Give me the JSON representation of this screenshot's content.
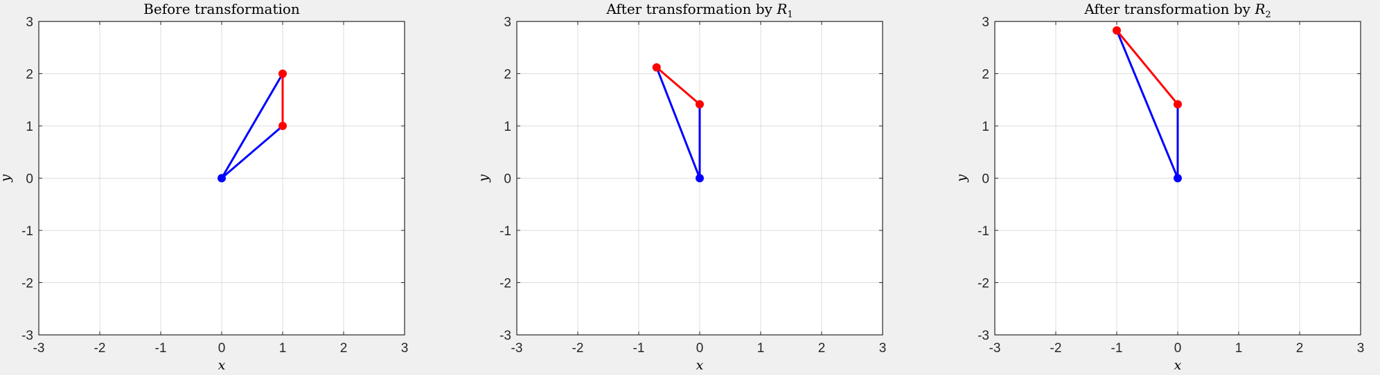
{
  "chart_data": [
    {
      "type": "line",
      "title": "Before transformation",
      "xlabel": "x",
      "ylabel": "y",
      "xlim": [
        -3,
        3
      ],
      "ylim": [
        -3,
        3
      ],
      "xticks": [
        "-3",
        "-2",
        "-1",
        "0",
        "1",
        "2",
        "3"
      ],
      "yticks": [
        "-3",
        "-2",
        "-1",
        "0",
        "1",
        "2",
        "3"
      ],
      "grid": true,
      "segments": [
        {
          "color": "#0000ff",
          "x": [
            0,
            1
          ],
          "y": [
            0,
            1
          ]
        },
        {
          "color": "#0000ff",
          "x": [
            0,
            1
          ],
          "y": [
            0,
            2
          ]
        },
        {
          "color": "#ff0000",
          "x": [
            1,
            1
          ],
          "y": [
            1,
            2
          ]
        }
      ],
      "points": [
        {
          "color": "#0000ff",
          "x": 0,
          "y": 0
        },
        {
          "color": "#ff0000",
          "x": 1,
          "y": 1
        },
        {
          "color": "#ff0000",
          "x": 1,
          "y": 2
        }
      ]
    },
    {
      "type": "line",
      "title": "After transformation by R",
      "title_subscript": "1",
      "xlabel": "x",
      "ylabel": "y",
      "xlim": [
        -3,
        3
      ],
      "ylim": [
        -3,
        3
      ],
      "xticks": [
        "-3",
        "-2",
        "-1",
        "0",
        "1",
        "2",
        "3"
      ],
      "yticks": [
        "-3",
        "-2",
        "-1",
        "0",
        "1",
        "2",
        "3"
      ],
      "grid": true,
      "segments": [
        {
          "color": "#0000ff",
          "x": [
            0,
            0
          ],
          "y": [
            0,
            1.414
          ]
        },
        {
          "color": "#0000ff",
          "x": [
            0,
            -0.707
          ],
          "y": [
            0,
            2.121
          ]
        },
        {
          "color": "#ff0000",
          "x": [
            0,
            -0.707
          ],
          "y": [
            1.414,
            2.121
          ]
        }
      ],
      "points": [
        {
          "color": "#0000ff",
          "x": 0,
          "y": 0
        },
        {
          "color": "#ff0000",
          "x": 0,
          "y": 1.414
        },
        {
          "color": "#ff0000",
          "x": -0.707,
          "y": 2.121
        }
      ]
    },
    {
      "type": "line",
      "title": "After transformation by R",
      "title_subscript": "2",
      "xlabel": "x",
      "ylabel": "y",
      "xlim": [
        -3,
        3
      ],
      "ylim": [
        -3,
        3
      ],
      "xticks": [
        "-3",
        "-2",
        "-1",
        "0",
        "1",
        "2",
        "3"
      ],
      "yticks": [
        "-3",
        "-2",
        "-1",
        "0",
        "1",
        "2",
        "3"
      ],
      "grid": true,
      "segments": [
        {
          "color": "#0000ff",
          "x": [
            0,
            0
          ],
          "y": [
            0,
            1.414
          ]
        },
        {
          "color": "#0000ff",
          "x": [
            0,
            -1
          ],
          "y": [
            0,
            2.828
          ]
        },
        {
          "color": "#ff0000",
          "x": [
            0,
            -1
          ],
          "y": [
            1.414,
            2.828
          ]
        }
      ],
      "points": [
        {
          "color": "#0000ff",
          "x": 0,
          "y": 0
        },
        {
          "color": "#ff0000",
          "x": 0,
          "y": 1.414
        },
        {
          "color": "#ff0000",
          "x": -1,
          "y": 2.828
        }
      ]
    }
  ]
}
